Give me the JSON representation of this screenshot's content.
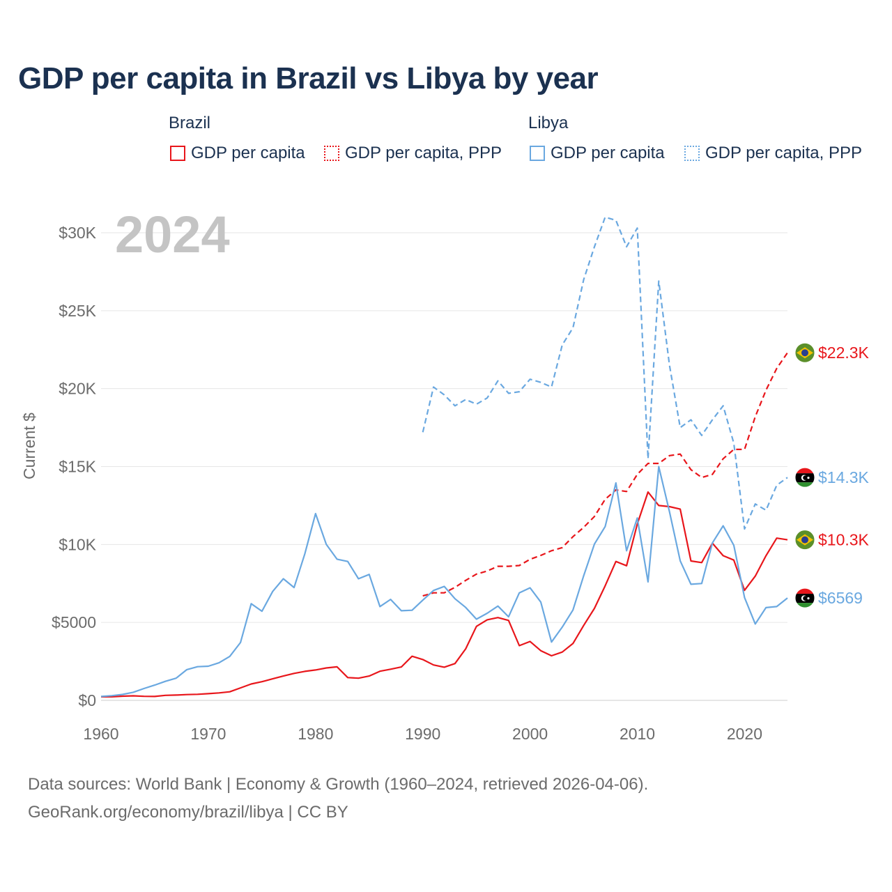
{
  "chart_data": {
    "type": "line",
    "title": "GDP per capita in Brazil vs Libya by year",
    "year_label": "2024",
    "ylabel": "Current $",
    "xlabel": "",
    "xlim": [
      1960,
      2024
    ],
    "ylim": [
      0,
      32000
    ],
    "x_ticks": [
      1960,
      1970,
      1980,
      1990,
      2000,
      2010,
      2020
    ],
    "x_tick_labels": [
      "1960",
      "1970",
      "1980",
      "1990",
      "2000",
      "2010",
      "2020"
    ],
    "y_ticks": [
      0,
      5000,
      10000,
      15000,
      20000,
      25000,
      30000
    ],
    "y_tick_labels": [
      "$0",
      "$5000",
      "$10K",
      "$15K",
      "$20K",
      "$25K",
      "$30K"
    ],
    "legend": {
      "groups": [
        {
          "name": "Brazil",
          "items": [
            "GDP per capita",
            "GDP per capita, PPP"
          ]
        },
        {
          "name": "Libya",
          "items": [
            "GDP per capita",
            "GDP per capita, PPP"
          ]
        }
      ]
    },
    "series": [
      {
        "name": "Brazil GDP per capita",
        "color": "#e8161b",
        "dash": "solid",
        "start_year": 1960,
        "values": [
          230,
          230,
          270,
          290,
          260,
          250,
          320,
          340,
          370,
          390,
          430,
          480,
          550,
          800,
          1050,
          1200,
          1380,
          1560,
          1730,
          1860,
          1950,
          2080,
          2150,
          1460,
          1420,
          1560,
          1870,
          2000,
          2140,
          2830,
          2620,
          2270,
          2130,
          2360,
          3310,
          4750,
          5170,
          5310,
          5130,
          3510,
          3780,
          3190,
          2860,
          3100,
          3650,
          4810,
          5900,
          7350,
          8910,
          8640,
          11310,
          13370,
          12500,
          12430,
          12270,
          8940,
          8840,
          10080,
          9280,
          9000,
          7060,
          7970,
          9280,
          10410,
          10300
        ],
        "end_label": "$10.3K",
        "end_flag": "brazil"
      },
      {
        "name": "Brazil GDP per capita, PPP",
        "color": "#e8161b",
        "dash": "dashed",
        "start_year": 1990,
        "values": [
          6700,
          6900,
          6900,
          7250,
          7700,
          8100,
          8300,
          8600,
          8600,
          8650,
          9050,
          9300,
          9600,
          9800,
          10500,
          11100,
          11800,
          12900,
          13500,
          13400,
          14500,
          15200,
          15200,
          15700,
          15800,
          14800,
          14300,
          14500,
          15500,
          16100,
          16100,
          18200,
          19900,
          21300,
          22300
        ],
        "end_label": "$22.3K",
        "end_flag": "brazil"
      },
      {
        "name": "Libya GDP per capita",
        "color": "#6aa8e0",
        "dash": "solid",
        "start_year": 1960,
        "values": [
          250,
          300,
          380,
          520,
          760,
          980,
          1220,
          1420,
          1970,
          2160,
          2190,
          2410,
          2820,
          3710,
          6200,
          5720,
          6990,
          7800,
          7240,
          9400,
          11980,
          10010,
          9060,
          8910,
          7800,
          8080,
          6020,
          6480,
          5750,
          5780,
          6430,
          7050,
          7310,
          6520,
          5960,
          5210,
          5590,
          6050,
          5360,
          6900,
          7220,
          6310,
          3740,
          4700,
          5800,
          8000,
          10030,
          11150,
          13950,
          9600,
          11700,
          7600,
          15000,
          12100,
          8950,
          7450,
          7500,
          10100,
          11200,
          9950,
          6600,
          4900,
          5950,
          6020,
          6569
        ],
        "end_label": "$6569",
        "end_flag": "libya"
      },
      {
        "name": "Libya GDP per capita, PPP",
        "color": "#6aa8e0",
        "dash": "dashed",
        "start_year": 1990,
        "values": [
          17200,
          20100,
          19600,
          18900,
          19300,
          19000,
          19400,
          20500,
          19700,
          19800,
          20600,
          20400,
          20100,
          22800,
          23900,
          27000,
          29100,
          31000,
          30800,
          29100,
          30300,
          15500,
          26900,
          21500,
          17500,
          18000,
          17000,
          18000,
          18900,
          16500,
          11000,
          12600,
          12200,
          13800,
          14300
        ],
        "end_label": "$14.3K",
        "end_flag": "libya"
      }
    ]
  },
  "footer": {
    "line1": "Data sources: World Bank | Economy & Growth (1960–2024, retrieved 2026-04-06).",
    "line2": "GeoRank.org/economy/brazil/libya | CC BY"
  }
}
